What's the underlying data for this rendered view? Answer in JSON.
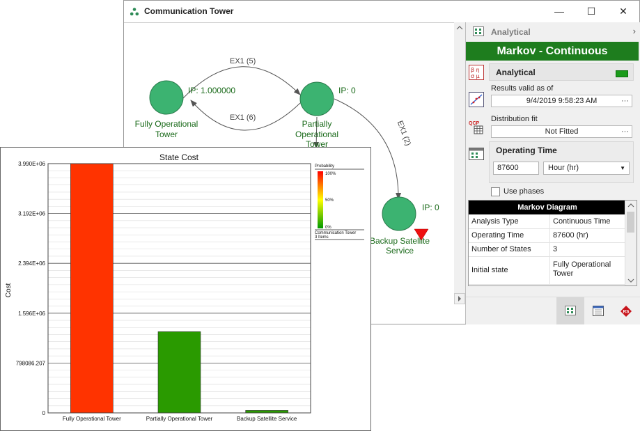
{
  "window": {
    "title": "Communication Tower",
    "minimize_glyph": "—",
    "maximize_glyph": "☐",
    "close_glyph": "✕"
  },
  "diagram": {
    "states": [
      {
        "name": "Fully Operational Tower",
        "line1": "Fully Operational",
        "line2": "Tower",
        "ip": "IP: 1.000000"
      },
      {
        "name": "Partially Operational Tower",
        "line1": "Partially",
        "line2": "Operational",
        "line3": "Tower",
        "ip": "IP: 0"
      },
      {
        "name": "Backup Satellite Service",
        "line1": "Backup Satellite",
        "line2": "Service",
        "ip": "IP: 0"
      }
    ],
    "transitions": [
      {
        "label": "EX1 (5)"
      },
      {
        "label": "EX1 (6)"
      },
      {
        "label": "EX1 (2)"
      }
    ],
    "state_color": "#3cb371",
    "warning_color": "#ee1111"
  },
  "panel": {
    "header": "Analytical",
    "banner": "Markov - Continuous",
    "analytical_title": "Analytical",
    "results_label": "Results valid as of",
    "results_value": "9/4/2019 9:58:23 AM",
    "dist_label": "Distribution fit",
    "dist_value": "Not Fitted",
    "optime_title": "Operating Time",
    "optime_value": "87600",
    "optime_unit": "Hour (hr)",
    "use_phases": "Use phases",
    "ellipsis": "···",
    "tools": [
      "parameters-icon",
      "plot-icon",
      "qcp-calculator-icon",
      "diagram-settings-icon"
    ]
  },
  "markov_table": {
    "title": "Markov Diagram",
    "rows": [
      {
        "key": "Analysis Type",
        "value": "Continuous Time"
      },
      {
        "key": "Operating Time",
        "value": "87600 (hr)"
      },
      {
        "key": "Number of States",
        "value": "3"
      },
      {
        "key": "Initial state",
        "value": "Fully Operational Tower"
      }
    ]
  },
  "chart_data": {
    "type": "bar",
    "title": "State Cost",
    "ylabel": "Cost",
    "xlabel": "",
    "categories": [
      "Fully Operational Tower",
      "Partially Operational Tower",
      "Backup Satellite Service"
    ],
    "values": [
      3990000,
      1300000,
      40000
    ],
    "colors": [
      "#ff3300",
      "#2a9a00",
      "#2a9a00"
    ],
    "ylim": [
      0,
      3990000
    ],
    "ytick_labels": [
      "0",
      "798086.207",
      "1.596E+06",
      "2.394E+06",
      "3.192E+06",
      "3.990E+06"
    ],
    "grid": true,
    "legend": {
      "title": "Probability",
      "ticks": [
        "100%",
        "50%",
        "0%"
      ],
      "group": "Communication Tower",
      "items": "3 Items",
      "placement": "right"
    }
  }
}
